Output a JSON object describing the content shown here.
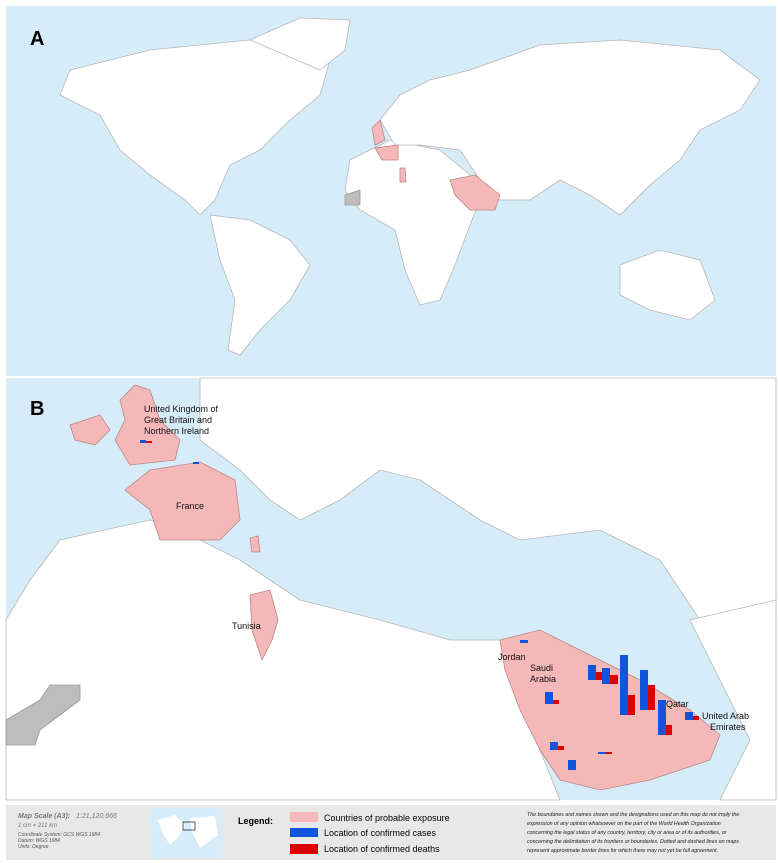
{
  "panels": {
    "a": {
      "label": "A"
    },
    "b": {
      "label": "B",
      "countries": [
        "United Kingdom of",
        "Great Britain and",
        "Northern Ireland",
        "France",
        "Tunisia",
        "Jordan",
        "Saudi",
        "Arabia",
        "Qatar",
        "United Arab",
        "Emirates"
      ]
    }
  },
  "footer": {
    "scale_title": "Map Scale (A3):",
    "scale_value": "1:21,120,666",
    "scale_note": "1 cm = 211 km",
    "coords": [
      "Coordinate System: GCS WGS 1984",
      "Datum: WGS 1984",
      "Units: Degree"
    ],
    "legend": {
      "title": "Legend:",
      "items": [
        "Countries of probable exposure",
        "Location of confirmed cases",
        "Location of confirmed deaths"
      ]
    },
    "disclaimer": [
      "The boundaries and names shown and the designations used on this map do not imply the",
      "expression of any opinion whatsoever on the part of the World Health Organization",
      "concerning the legal status of any country, territory, city or area or of its authorities, or",
      "concerning the delimitation of its frontiers or boundaries. Dotted and dashed lines on maps",
      "represent approximate border lines for which there may not yet be full agreement."
    ]
  }
}
